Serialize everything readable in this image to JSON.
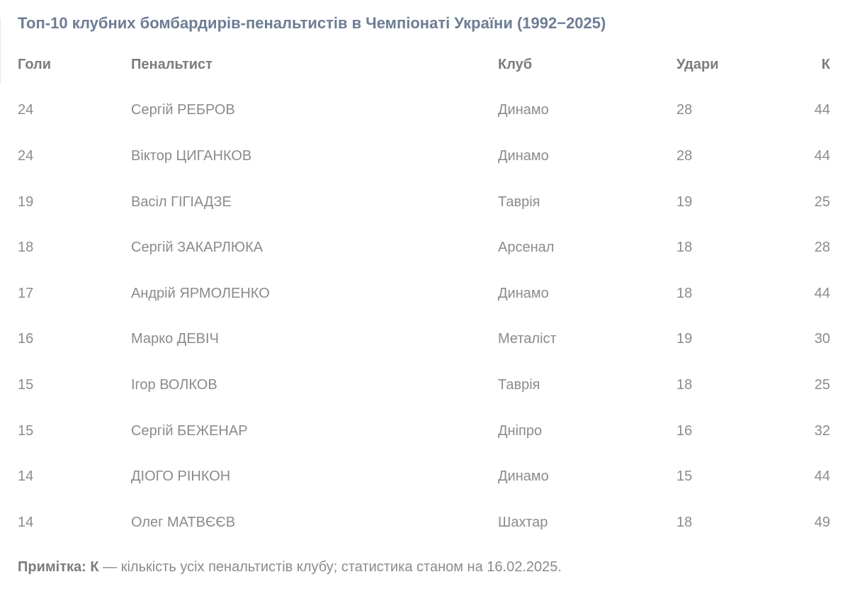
{
  "chart_data": {
    "type": "table",
    "title": "Топ-10 клубних бомбардирів-пенальтистів в Чемпіонаті України (1992−2025)",
    "columns": [
      "Голи",
      "Пенальтист",
      "Клуб",
      "Удари",
      "К"
    ],
    "rows": [
      [
        "24",
        "Сергій РЕБРОВ",
        "Динамо",
        "28",
        "44"
      ],
      [
        "24",
        "Віктор ЦИГАНКОВ",
        "Динамо",
        "28",
        "44"
      ],
      [
        "19",
        "Васіл ГІГІАДЗЕ",
        "Таврія",
        "19",
        "25"
      ],
      [
        "18",
        "Сергій ЗАКАРЛЮКА",
        "Арсенал",
        "18",
        "28"
      ],
      [
        "17",
        "Андрій ЯРМОЛЕНКО",
        "Динамо",
        "18",
        "44"
      ],
      [
        "16",
        "Марко ДЕВІЧ",
        "Металіст",
        "19",
        "30"
      ],
      [
        "15",
        "Ігор ВОЛКОВ",
        "Таврія",
        "18",
        "25"
      ],
      [
        "15",
        "Сергій БЕЖЕНАР",
        "Дніпро",
        "16",
        "32"
      ],
      [
        "14",
        "ДІОГО РІНКОН",
        "Динамо",
        "15",
        "44"
      ],
      [
        "14",
        "Олег МАТВЄЄВ",
        "Шахтар",
        "18",
        "49"
      ]
    ],
    "note_label": "Примітка: К",
    "note_text": " — кількість усіх пенальтистів клубу; статистика станом на 16.02.2025.",
    "layout": "plain white table, no gridlines, whitespace row separation"
  },
  "colors": {
    "title_text": "#6d7d94",
    "header_text": "#7c7c7c",
    "body_text": "#8b8b8b",
    "background": "#ffffff",
    "edge_fragment": "#e7e7e7"
  }
}
